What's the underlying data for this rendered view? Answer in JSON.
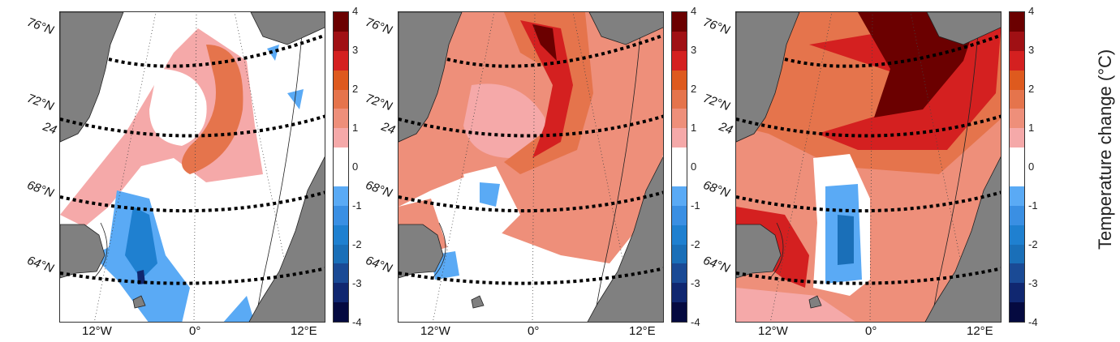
{
  "figure": {
    "panels": [
      {
        "lat_labels": [
          "76°N",
          "72°N",
          "24",
          "68°N",
          "64°N"
        ],
        "lon_labels": [
          "12°W",
          "0°",
          "12°E"
        ]
      },
      {
        "lat_labels": [
          "76°N",
          "72°N",
          "24",
          "68°N",
          "64°N"
        ],
        "lon_labels": [
          "12°W",
          "0°",
          "12°E"
        ]
      },
      {
        "lat_labels": [
          "76°N",
          "72°N",
          "24",
          "68°N",
          "64°N"
        ],
        "lon_labels": [
          "12°W",
          "0°",
          "12°E"
        ]
      }
    ],
    "colorbar": {
      "ticks": [
        "4",
        "3",
        "2",
        "1",
        "0",
        "-1",
        "-2",
        "-3",
        "-4"
      ],
      "range": [
        -4,
        4
      ],
      "label": "Temperature change (°C)",
      "colors": [
        "#6b0000",
        "#a01014",
        "#d42020",
        "#de5a1e",
        "#e5744c",
        "#ee8f7a",
        "#f5a9a9",
        "#ffffff",
        "#ffffff",
        "#5aaaf5",
        "#3a8fe3",
        "#1f80d0",
        "#1a6fb8",
        "#1a4a95",
        "#102770",
        "#050a40"
      ]
    },
    "land_color": "#808080"
  }
}
